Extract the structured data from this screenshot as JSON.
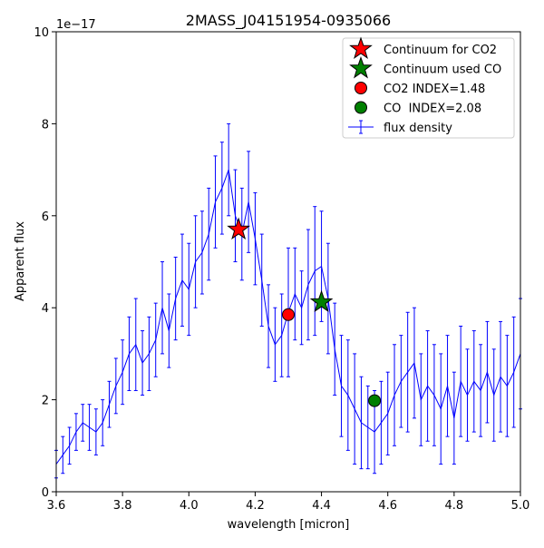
{
  "chart_data": {
    "type": "line",
    "title": "2MASS_J04151954-0935066",
    "xlabel": "wavelength [micron]",
    "ylabel": "Apparent flux",
    "y_scale_label": "1e−17",
    "xlim": [
      3.6,
      5.0
    ],
    "ylim": [
      0,
      10
    ],
    "x_ticks": [
      3.6,
      3.8,
      4.0,
      4.2,
      4.4,
      4.6,
      4.8,
      5.0
    ],
    "x_tick_labels": [
      "3.6",
      "3.8",
      "4.0",
      "4.2",
      "4.4",
      "4.6",
      "4.8",
      "5.0"
    ],
    "y_ticks": [
      0,
      2,
      4,
      6,
      8,
      10
    ],
    "y_tick_labels": [
      "0",
      "2",
      "4",
      "6",
      "8",
      "10"
    ],
    "grid": false,
    "legend_position": "top-right",
    "colors": {
      "flux": "#0000ff",
      "co2": "#ff0000",
      "co": "#008000",
      "marker_edge": "#000000"
    },
    "legend": [
      {
        "label": "Continuum for CO2",
        "marker": "star",
        "color": "#ff0000"
      },
      {
        "label": "Continuum used CO",
        "marker": "star",
        "color": "#008000"
      },
      {
        "label": "CO2 INDEX=1.48",
        "marker": "circle",
        "color": "#ff0000"
      },
      {
        "label": "CO  INDEX=2.08",
        "marker": "circle",
        "color": "#008000"
      },
      {
        "label": "flux density",
        "marker": "errorbar",
        "color": "#0000ff"
      }
    ],
    "markers": [
      {
        "name": "Continuum for CO2",
        "shape": "star",
        "x": 4.15,
        "y": 5.7,
        "color": "#ff0000"
      },
      {
        "name": "Continuum used CO",
        "shape": "star",
        "x": 4.4,
        "y": 4.12,
        "color": "#008000"
      },
      {
        "name": "CO2 INDEX=1.48",
        "shape": "circle",
        "x": 4.3,
        "y": 3.85,
        "color": "#ff0000"
      },
      {
        "name": "CO  INDEX=2.08",
        "shape": "circle",
        "x": 4.56,
        "y": 1.98,
        "color": "#008000"
      }
    ],
    "series": [
      {
        "name": "flux density",
        "x": [
          3.6,
          3.62,
          3.64,
          3.66,
          3.68,
          3.7,
          3.72,
          3.74,
          3.76,
          3.78,
          3.8,
          3.82,
          3.84,
          3.86,
          3.88,
          3.9,
          3.92,
          3.94,
          3.96,
          3.98,
          4.0,
          4.02,
          4.04,
          4.06,
          4.08,
          4.1,
          4.12,
          4.14,
          4.16,
          4.18,
          4.2,
          4.22,
          4.24,
          4.26,
          4.28,
          4.3,
          4.32,
          4.34,
          4.36,
          4.38,
          4.4,
          4.42,
          4.44,
          4.46,
          4.48,
          4.5,
          4.52,
          4.54,
          4.56,
          4.58,
          4.6,
          4.62,
          4.64,
          4.66,
          4.68,
          4.7,
          4.72,
          4.74,
          4.76,
          4.78,
          4.8,
          4.82,
          4.84,
          4.86,
          4.88,
          4.9,
          4.92,
          4.94,
          4.96,
          4.98,
          5.0
        ],
        "y": [
          0.6,
          0.8,
          1.0,
          1.3,
          1.5,
          1.4,
          1.3,
          1.5,
          1.9,
          2.3,
          2.6,
          3.0,
          3.2,
          2.8,
          3.0,
          3.3,
          4.0,
          3.5,
          4.2,
          4.6,
          4.4,
          5.0,
          5.2,
          5.6,
          6.3,
          6.6,
          7.0,
          6.0,
          5.6,
          6.3,
          5.5,
          4.6,
          3.6,
          3.2,
          3.4,
          3.9,
          4.3,
          4.0,
          4.5,
          4.8,
          4.9,
          4.2,
          3.1,
          2.3,
          2.1,
          1.8,
          1.5,
          1.4,
          1.3,
          1.5,
          1.7,
          2.1,
          2.4,
          2.6,
          2.8,
          2.0,
          2.3,
          2.1,
          1.8,
          2.3,
          1.6,
          2.4,
          2.1,
          2.4,
          2.2,
          2.6,
          2.1,
          2.5,
          2.3,
          2.6,
          3.0
        ],
        "err": [
          0.3,
          0.4,
          0.4,
          0.4,
          0.4,
          0.5,
          0.5,
          0.5,
          0.5,
          0.6,
          0.7,
          0.8,
          1.0,
          0.7,
          0.8,
          0.8,
          1.0,
          0.8,
          0.9,
          1.0,
          1.0,
          1.0,
          0.9,
          1.0,
          1.0,
          1.0,
          1.0,
          1.0,
          1.0,
          1.1,
          1.0,
          1.0,
          0.9,
          0.8,
          0.9,
          1.4,
          1.0,
          0.8,
          1.2,
          1.4,
          1.2,
          1.2,
          1.0,
          1.1,
          1.2,
          1.2,
          1.0,
          0.9,
          0.9,
          0.9,
          0.9,
          1.1,
          1.0,
          1.3,
          1.2,
          1.0,
          1.2,
          1.1,
          1.2,
          1.1,
          1.0,
          1.2,
          1.0,
          1.1,
          1.0,
          1.1,
          1.0,
          1.2,
          1.1,
          1.2,
          1.2
        ]
      }
    ]
  }
}
